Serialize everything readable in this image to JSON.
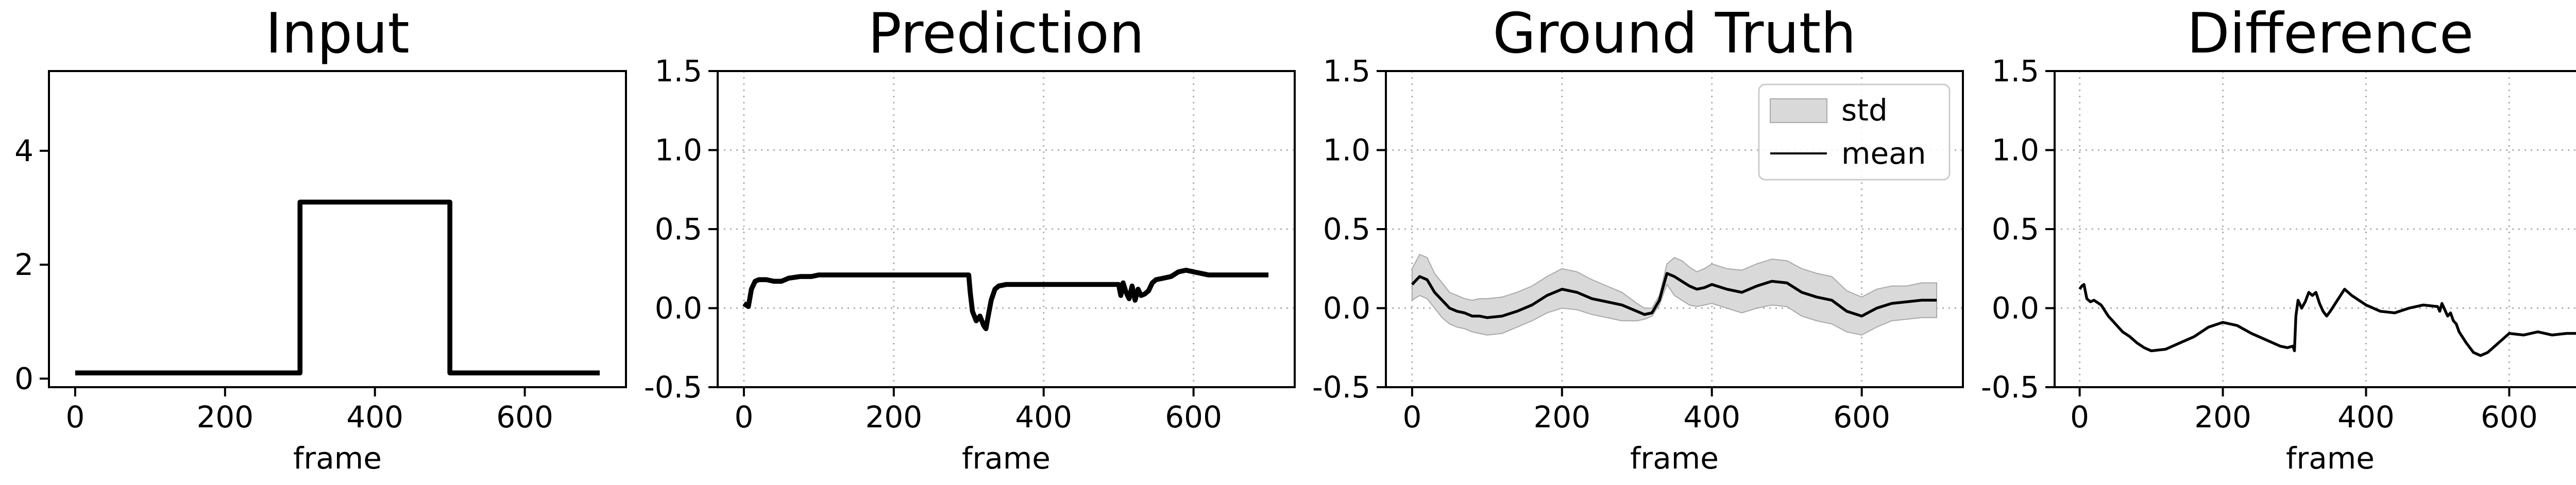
{
  "chart_data": [
    {
      "type": "line",
      "title": "Input",
      "xlabel": "frame",
      "ylabel": "",
      "xlim": [
        -35,
        735
      ],
      "ylim": [
        -0.15,
        5.4
      ],
      "xticks": [
        0,
        200,
        400,
        600
      ],
      "yticks": [
        0,
        2,
        4
      ],
      "grid": false,
      "series": [
        {
          "color": "#000000",
          "line_width": 3.2,
          "x": [
            0,
            300,
            300,
            500,
            500,
            700
          ],
          "y": [
            0.1,
            0.1,
            3.1,
            3.1,
            0.1,
            0.1
          ]
        }
      ]
    },
    {
      "type": "line",
      "title": "Prediction",
      "xlabel": "frame",
      "ylabel": "",
      "xlim": [
        -35,
        735
      ],
      "ylim": [
        -0.5,
        1.5
      ],
      "xticks": [
        0,
        200,
        400,
        600
      ],
      "yticks": [
        -0.5,
        0.0,
        0.5,
        1.0,
        1.5
      ],
      "grid": true,
      "series": [
        {
          "color": "#000000",
          "line_width": 3.2,
          "x": [
            0,
            3,
            6,
            10,
            15,
            20,
            30,
            40,
            50,
            60,
            75,
            90,
            100,
            120,
            150,
            200,
            250,
            290,
            298,
            300,
            302,
            305,
            310,
            315,
            320,
            323,
            326,
            330,
            335,
            340,
            350,
            400,
            450,
            500,
            503,
            506,
            510,
            514,
            518,
            522,
            526,
            530,
            535,
            540,
            545,
            550,
            560,
            570,
            580,
            590,
            600,
            620,
            650,
            700
          ],
          "y": [
            0.03,
            0.02,
            0.01,
            0.12,
            0.17,
            0.18,
            0.18,
            0.17,
            0.17,
            0.19,
            0.2,
            0.2,
            0.21,
            0.21,
            0.21,
            0.21,
            0.21,
            0.21,
            0.21,
            0.21,
            0.1,
            -0.02,
            -0.08,
            -0.05,
            -0.11,
            -0.13,
            -0.05,
            0.05,
            0.12,
            0.14,
            0.15,
            0.15,
            0.15,
            0.15,
            0.08,
            0.16,
            0.1,
            0.06,
            0.14,
            0.05,
            0.12,
            0.08,
            0.09,
            0.11,
            0.16,
            0.18,
            0.19,
            0.2,
            0.23,
            0.24,
            0.23,
            0.21,
            0.21,
            0.21
          ]
        }
      ]
    },
    {
      "type": "area",
      "title": "Ground Truth",
      "xlabel": "frame",
      "ylabel": "",
      "xlim": [
        -35,
        735
      ],
      "ylim": [
        -0.5,
        1.5
      ],
      "xticks": [
        0,
        200,
        400,
        600
      ],
      "yticks": [
        -0.5,
        0.0,
        0.5,
        1.0,
        1.5
      ],
      "grid": true,
      "legend": {
        "position": "top-right",
        "entries": [
          "std",
          "mean"
        ]
      },
      "x": [
        0,
        10,
        20,
        30,
        40,
        50,
        60,
        70,
        80,
        90,
        100,
        120,
        140,
        160,
        180,
        200,
        220,
        240,
        260,
        280,
        300,
        310,
        320,
        330,
        340,
        350,
        360,
        370,
        380,
        390,
        400,
        420,
        440,
        460,
        480,
        500,
        520,
        540,
        560,
        580,
        600,
        620,
        640,
        660,
        680,
        700
      ],
      "series": [
        {
          "name": "mean",
          "color": "#000000",
          "line_width": 1.8,
          "values": [
            0.15,
            0.2,
            0.18,
            0.1,
            0.05,
            0.0,
            -0.02,
            -0.03,
            -0.05,
            -0.05,
            -0.06,
            -0.05,
            -0.02,
            0.02,
            0.08,
            0.12,
            0.1,
            0.06,
            0.04,
            0.02,
            -0.02,
            -0.04,
            -0.03,
            0.05,
            0.22,
            0.2,
            0.17,
            0.14,
            0.12,
            0.13,
            0.15,
            0.12,
            0.1,
            0.14,
            0.17,
            0.16,
            0.1,
            0.07,
            0.05,
            -0.02,
            -0.05,
            0.0,
            0.03,
            0.04,
            0.05,
            0.05
          ]
        },
        {
          "name": "std",
          "color": "#d9d9d9",
          "edge_color": "#a9a9a9",
          "lower": [
            0.05,
            0.08,
            0.06,
            0.0,
            -0.06,
            -0.1,
            -0.12,
            -0.13,
            -0.15,
            -0.16,
            -0.17,
            -0.16,
            -0.12,
            -0.08,
            -0.03,
            0.0,
            -0.01,
            -0.04,
            -0.06,
            -0.08,
            -0.08,
            -0.07,
            -0.05,
            0.02,
            0.15,
            0.08,
            0.05,
            0.02,
            0.01,
            0.02,
            0.03,
            0.0,
            -0.03,
            0.0,
            0.02,
            0.01,
            -0.05,
            -0.08,
            -0.1,
            -0.15,
            -0.17,
            -0.12,
            -0.08,
            -0.07,
            -0.06,
            -0.06
          ],
          "upper": [
            0.25,
            0.34,
            0.32,
            0.22,
            0.16,
            0.1,
            0.08,
            0.06,
            0.05,
            0.06,
            0.06,
            0.07,
            0.1,
            0.14,
            0.2,
            0.25,
            0.23,
            0.18,
            0.14,
            0.1,
            0.03,
            0.0,
            0.0,
            0.08,
            0.28,
            0.32,
            0.3,
            0.26,
            0.23,
            0.25,
            0.28,
            0.25,
            0.24,
            0.28,
            0.31,
            0.3,
            0.25,
            0.22,
            0.2,
            0.11,
            0.07,
            0.12,
            0.14,
            0.14,
            0.16,
            0.16
          ]
        }
      ]
    },
    {
      "type": "line",
      "title": "Difference",
      "xlabel": "frame",
      "ylabel": "",
      "xlim": [
        -35,
        735
      ],
      "ylim": [
        -0.5,
        1.5
      ],
      "xticks": [
        0,
        200,
        400,
        600
      ],
      "yticks": [
        -0.5,
        0.0,
        0.5,
        1.0,
        1.5
      ],
      "grid": true,
      "series": [
        {
          "color": "#000000",
          "line_width": 1.8,
          "x": [
            0,
            3,
            6,
            10,
            15,
            20,
            30,
            40,
            50,
            60,
            70,
            80,
            90,
            100,
            120,
            140,
            160,
            180,
            200,
            220,
            240,
            260,
            280,
            290,
            298,
            300,
            302,
            305,
            310,
            315,
            320,
            325,
            330,
            335,
            340,
            345,
            350,
            360,
            370,
            380,
            390,
            400,
            420,
            440,
            460,
            480,
            500,
            503,
            506,
            510,
            514,
            518,
            522,
            526,
            530,
            540,
            550,
            560,
            570,
            580,
            590,
            600,
            620,
            640,
            660,
            680,
            700
          ],
          "y": [
            0.12,
            0.14,
            0.15,
            0.06,
            0.04,
            0.05,
            0.02,
            -0.05,
            -0.1,
            -0.15,
            -0.18,
            -0.22,
            -0.25,
            -0.27,
            -0.26,
            -0.22,
            -0.18,
            -0.12,
            -0.09,
            -0.11,
            -0.16,
            -0.2,
            -0.24,
            -0.25,
            -0.24,
            -0.27,
            -0.05,
            0.05,
            0.0,
            0.04,
            0.1,
            0.08,
            0.1,
            0.03,
            -0.02,
            -0.05,
            -0.02,
            0.05,
            0.12,
            0.08,
            0.05,
            0.02,
            -0.02,
            -0.03,
            0.0,
            0.02,
            0.01,
            -0.02,
            0.03,
            -0.01,
            -0.05,
            -0.03,
            -0.08,
            -0.1,
            -0.15,
            -0.22,
            -0.28,
            -0.3,
            -0.28,
            -0.24,
            -0.2,
            -0.16,
            -0.17,
            -0.15,
            -0.17,
            -0.16,
            -0.16
          ]
        }
      ]
    }
  ]
}
